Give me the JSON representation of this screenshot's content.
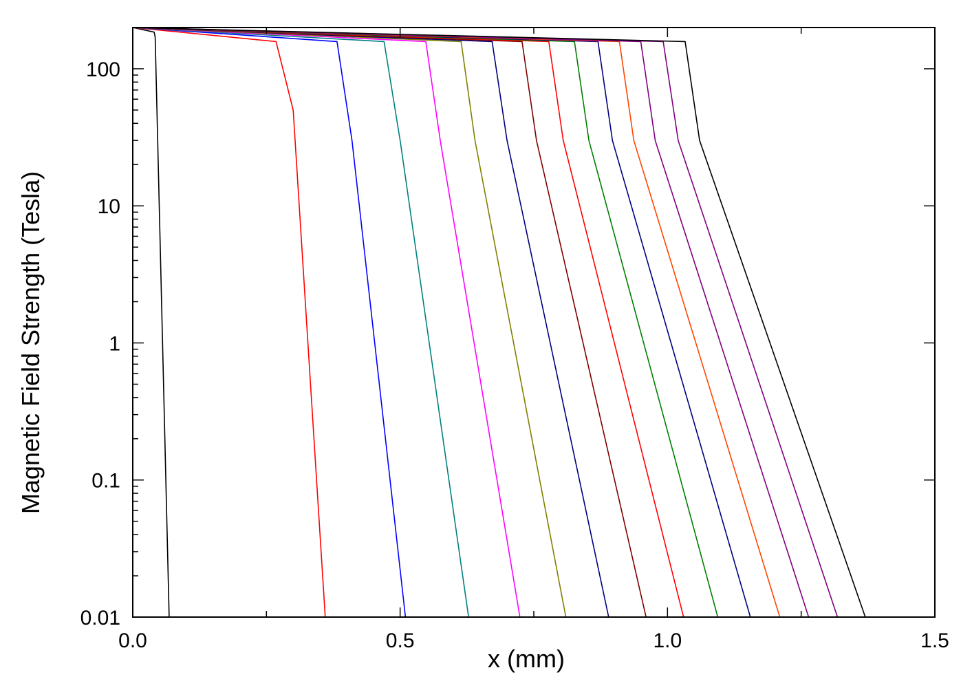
{
  "chart_data": {
    "type": "line",
    "title": "",
    "xlabel": "x (mm)",
    "ylabel": "Magnetic Field Strength (Tesla)",
    "xlim": [
      0,
      1.5
    ],
    "ylim": [
      0.01,
      200
    ],
    "yscale": "log",
    "grid": false,
    "legend": "none",
    "x_ticks": [
      {
        "value": 0.0,
        "label": "0.0"
      },
      {
        "value": 0.5,
        "label": "0.5"
      },
      {
        "value": 1.0,
        "label": "1.0"
      },
      {
        "value": 1.5,
        "label": "1.5"
      }
    ],
    "y_ticks": [
      {
        "value": 0.01,
        "label": "0.01"
      },
      {
        "value": 0.1,
        "label": "0.1"
      },
      {
        "value": 1,
        "label": "1"
      },
      {
        "value": 10,
        "label": "10"
      },
      {
        "value": 100,
        "label": "100"
      }
    ],
    "series": [
      {
        "color": "#000000",
        "x": [
          0.0,
          0.04,
          0.042,
          0.068
        ],
        "y": [
          200,
          185,
          170,
          0.01
        ]
      },
      {
        "color": "#ff0000",
        "x": [
          0.0,
          0.268,
          0.3,
          0.36
        ],
        "y": [
          200,
          158,
          50,
          0.01
        ]
      },
      {
        "color": "#0000ff",
        "x": [
          0.0,
          0.382,
          0.41,
          0.51
        ],
        "y": [
          200,
          158,
          30,
          0.01
        ]
      },
      {
        "color": "#008080",
        "x": [
          0.0,
          0.47,
          0.5,
          0.628
        ],
        "y": [
          200,
          158,
          30,
          0.01
        ]
      },
      {
        "color": "#ff00ff",
        "x": [
          0.0,
          0.548,
          0.575,
          0.724
        ],
        "y": [
          200,
          158,
          30,
          0.01
        ]
      },
      {
        "color": "#808000",
        "x": [
          0.0,
          0.614,
          0.64,
          0.81
        ],
        "y": [
          200,
          158,
          30,
          0.01
        ]
      },
      {
        "color": "#000080",
        "x": [
          0.0,
          0.672,
          0.7,
          0.89
        ],
        "y": [
          200,
          158,
          30,
          0.01
        ]
      },
      {
        "color": "#800000",
        "x": [
          0.0,
          0.728,
          0.755,
          0.96
        ],
        "y": [
          200,
          158,
          30,
          0.01
        ]
      },
      {
        "color": "#ff0000",
        "x": [
          0.0,
          0.778,
          0.805,
          1.03
        ],
        "y": [
          200,
          158,
          30,
          0.01
        ]
      },
      {
        "color": "#008000",
        "x": [
          0.0,
          0.826,
          0.853,
          1.094
        ],
        "y": [
          200,
          158,
          30,
          0.01
        ]
      },
      {
        "color": "#000080",
        "x": [
          0.0,
          0.87,
          0.897,
          1.155
        ],
        "y": [
          200,
          158,
          30,
          0.01
        ]
      },
      {
        "color": "#ff4500",
        "x": [
          0.0,
          0.91,
          0.937,
          1.21
        ],
        "y": [
          200,
          158,
          30,
          0.01
        ]
      },
      {
        "color": "#800080",
        "x": [
          0.0,
          0.95,
          0.977,
          1.264
        ],
        "y": [
          200,
          158,
          30,
          0.01
        ]
      },
      {
        "color": "#800080",
        "x": [
          0.0,
          0.992,
          1.02,
          1.318
        ],
        "y": [
          200,
          158,
          30,
          0.01
        ]
      },
      {
        "color": "#000000",
        "x": [
          0.0,
          1.033,
          1.06,
          1.37
        ],
        "y": [
          200,
          158,
          30,
          0.01
        ]
      }
    ]
  }
}
